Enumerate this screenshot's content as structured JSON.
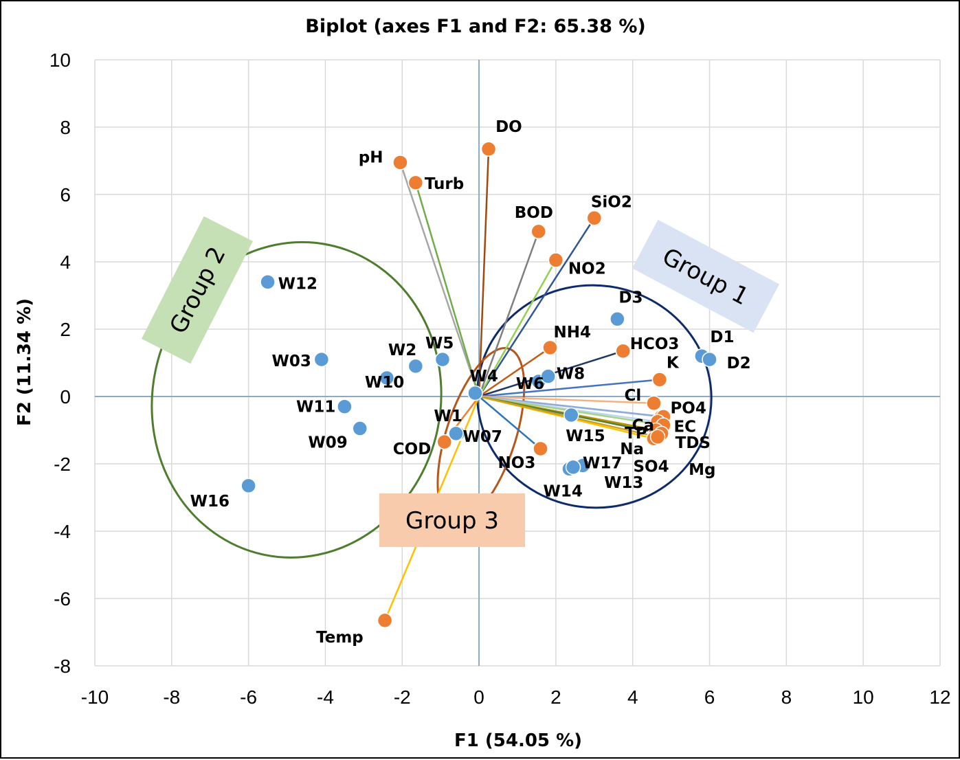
{
  "chart_data": {
    "type": "scatter",
    "title": "Biplot (axes F1 and F2: 65.38 %)",
    "xlabel": "F1 (54.05 %)",
    "ylabel": "F2 (11.34 %)",
    "xlim": [
      -10,
      12
    ],
    "ylim": [
      -8,
      10
    ],
    "xticks": [
      -10,
      -8,
      -6,
      -4,
      -2,
      0,
      2,
      4,
      6,
      8,
      10,
      12
    ],
    "yticks": [
      -8,
      -6,
      -4,
      -2,
      0,
      2,
      4,
      6,
      8,
      10
    ],
    "grid": true,
    "colors": {
      "observations": "#5B9BD5",
      "variables": "#ED7D31",
      "group1": "#0D2B6B",
      "group2": "#4E7D2E",
      "group3": "#B5561B",
      "group1_box": "#DAE3F3",
      "group2_box": "#C5E0B4",
      "group3_box": "#F8CBAD",
      "grid": "#D9D9D9",
      "zero_axis": "#8EA9C1"
    },
    "observations": [
      {
        "label": "W12",
        "x": -5.5,
        "y": 3.4
      },
      {
        "label": "W03",
        "x": -4.1,
        "y": 1.1
      },
      {
        "label": "W10",
        "x": -2.4,
        "y": 0.55
      },
      {
        "label": "W2",
        "x": -1.65,
        "y": 0.9
      },
      {
        "label": "W5",
        "x": -0.95,
        "y": 1.1
      },
      {
        "label": "W11",
        "x": -3.5,
        "y": -0.3
      },
      {
        "label": "W09",
        "x": -3.1,
        "y": -0.95
      },
      {
        "label": "W16",
        "x": -6.0,
        "y": -2.65
      },
      {
        "label": "W4",
        "x": -0.1,
        "y": 0.1
      },
      {
        "label": "W1",
        "x": -0.55,
        "y": -1.1
      },
      {
        "label": "W07",
        "x": -0.6,
        "y": -1.1
      },
      {
        "label": "W6",
        "x": 1.55,
        "y": 0.45
      },
      {
        "label": "W8",
        "x": 1.8,
        "y": 0.6
      },
      {
        "label": "W15",
        "x": 2.4,
        "y": -0.55
      },
      {
        "label": "W14",
        "x": 2.35,
        "y": -2.15
      },
      {
        "label": "W17",
        "x": 2.7,
        "y": -2.05
      },
      {
        "label": "W13",
        "x": 2.45,
        "y": -2.1
      },
      {
        "label": "D3",
        "x": 3.6,
        "y": 2.3
      },
      {
        "label": "D1",
        "x": 5.8,
        "y": 1.2
      },
      {
        "label": "D2",
        "x": 6.0,
        "y": 1.1
      }
    ],
    "variables": [
      {
        "label": "DO",
        "x": 0.25,
        "y": 7.35,
        "line": "#A0490F"
      },
      {
        "label": "pH",
        "x": -2.05,
        "y": 6.95,
        "line": "#A6A6A6"
      },
      {
        "label": "Turb",
        "x": -1.65,
        "y": 6.35,
        "line": "#70AD47"
      },
      {
        "label": "BOD",
        "x": 1.55,
        "y": 4.9,
        "line": "#7F7F7F"
      },
      {
        "label": "SiO2",
        "x": 3.0,
        "y": 5.3,
        "line": "#2F5597"
      },
      {
        "label": "NO2",
        "x": 2.0,
        "y": 4.05,
        "line": "#92D050"
      },
      {
        "label": "NH4",
        "x": 1.85,
        "y": 1.45,
        "line": "#C55A11"
      },
      {
        "label": "HCO3",
        "x": 3.75,
        "y": 1.35,
        "line": "#203864"
      },
      {
        "label": "K",
        "x": 4.7,
        "y": 0.5,
        "line": "#4472C4"
      },
      {
        "label": "Cl",
        "x": 4.55,
        "y": -0.2,
        "line": "#F4B183"
      },
      {
        "label": "Ca",
        "x": 4.75,
        "y": -0.6,
        "line": "#9DC3E6"
      },
      {
        "label": "PO4",
        "x": 4.8,
        "y": -0.6,
        "line": "#8FAADC"
      },
      {
        "label": "TP",
        "x": 4.65,
        "y": -0.75,
        "line": "#BDD7EE"
      },
      {
        "label": "EC",
        "x": 4.8,
        "y": -0.85,
        "line": "#A9D18E"
      },
      {
        "label": "Na",
        "x": 4.6,
        "y": -1.0,
        "line": "#BF9000"
      },
      {
        "label": "TDS",
        "x": 4.75,
        "y": -1.1,
        "line": "#548235"
      },
      {
        "label": "SO4",
        "x": 4.55,
        "y": -1.25,
        "line": "#FFC000"
      },
      {
        "label": "Mg",
        "x": 4.65,
        "y": -1.2,
        "line": "#C9A227"
      },
      {
        "label": "NO3",
        "x": 1.6,
        "y": -1.55,
        "line": "#2E75B6"
      },
      {
        "label": "COD",
        "x": -0.9,
        "y": -1.35,
        "line": "#ED7D31"
      },
      {
        "label": "Temp",
        "x": -2.45,
        "y": -6.65,
        "line": "#FFC000"
      }
    ],
    "groups": [
      {
        "label": "Group 1",
        "cx": 3.0,
        "cy": 0.0,
        "rx": 3.05,
        "ry": 3.3,
        "angle": 8
      },
      {
        "label": "Group 2",
        "cx": -4.75,
        "cy": -0.1,
        "rx": 3.75,
        "ry": 4.7,
        "angle": 12
      },
      {
        "label": "Group 3",
        "cx": 0.05,
        "cy": -1.15,
        "rx": 0.9,
        "ry": 2.7,
        "angle": 18
      }
    ]
  }
}
